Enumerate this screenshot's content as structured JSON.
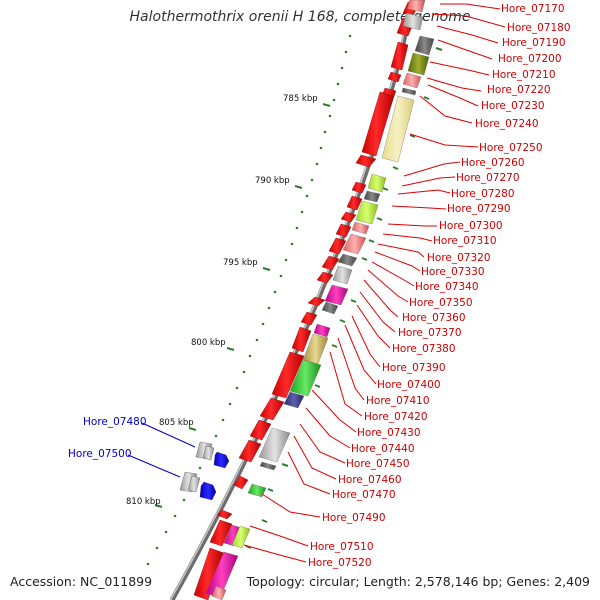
{
  "title": "Halothermothrix orenii H 168, complete genome",
  "footer": {
    "accession": "Accession: NC_011899",
    "topology": "Topology: circular; Length: 2,578,146 bp; Genes: 2,409"
  },
  "scale_labels": [
    "785 kbp",
    "790 kbp",
    "795 kbp",
    "800 kbp",
    "805 kbp",
    "810 kbp"
  ],
  "gene_labels_right": [
    "Hore_07170",
    "Hore_07180",
    "Hore_07190",
    "Hore_07200",
    "Hore_07210",
    "Hore_07220",
    "Hore_07230",
    "Hore_07240",
    "Hore_07250",
    "Hore_07260",
    "Hore_07270",
    "Hore_07280",
    "Hore_07290",
    "Hore_07300",
    "Hore_07310",
    "Hore_07320",
    "Hore_07330",
    "Hore_07340",
    "Hore_07350",
    "Hore_07360",
    "Hore_07370",
    "Hore_07380",
    "Hore_07390",
    "Hore_07400",
    "Hore_07410",
    "Hore_07420",
    "Hore_07430",
    "Hore_07440",
    "Hore_07450",
    "Hore_07460",
    "Hore_07470",
    "Hore_07490",
    "Hore_07510",
    "Hore_07520"
  ],
  "gene_labels_left": [
    "Hore_07480",
    "Hore_07500"
  ],
  "colors": {
    "forward_strand": "#ff0000",
    "backbone": "#888888",
    "label_right": "#cc0000",
    "label_left": "#0000cc",
    "tick": "#2e7d2e"
  }
}
